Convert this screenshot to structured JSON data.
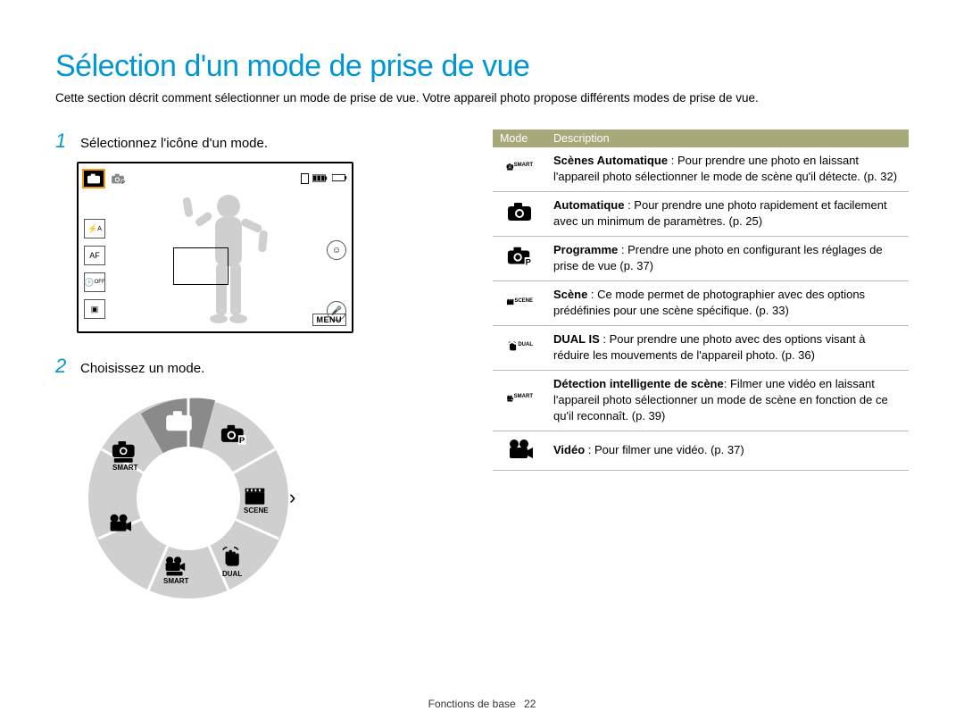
{
  "title": "Sélection d'un mode de prise de vue",
  "intro": "Cette section décrit comment sélectionner un mode de prise de vue. Votre appareil photo propose différents modes de prise de vue.",
  "steps": {
    "s1": {
      "num": "1",
      "text": "Sélectionnez l'icône d'un mode."
    },
    "s2": {
      "num": "2",
      "text": "Choisissez un mode."
    }
  },
  "lcd": {
    "flash_label": "A",
    "af_label": "AF",
    "off_label": "OFF",
    "menu_label": "MENU"
  },
  "dial": {
    "center_bg": "#ffffff",
    "ring_bg": "#cfcfcf",
    "segment_highlight": "#8a8a8a",
    "icon_color": "#000000",
    "labels": {
      "smart1": "SMART",
      "scene": "SCENE",
      "dual": "DUAL",
      "smart2": "SMART"
    }
  },
  "table": {
    "header": {
      "mode": "Mode",
      "desc": "Description"
    },
    "header_bg": "#a8a97a",
    "header_fg": "#ffffff",
    "border_color": "#bbbbbb",
    "rows": [
      {
        "bold": "Scènes Automatique",
        "rest": " : Pour prendre une photo en laissant l'appareil photo sélectionner le mode de scène qu'il détecte. (p. 32)",
        "icon": "smart-auto"
      },
      {
        "bold": "Automatique",
        "rest": " : Pour prendre une photo rapidement et facilement avec un minimum de paramètres. (p. 25)",
        "icon": "auto"
      },
      {
        "bold": "Programme",
        "rest": " : Prendre une photo en configurant les réglages de prise de vue (p. 37)",
        "icon": "program"
      },
      {
        "bold": "Scène",
        "rest": " : Ce mode permet de photographier avec des options prédéfinies pour une scène spécifique. (p. 33)",
        "icon": "scene"
      },
      {
        "bold": "DUAL IS",
        "rest": " : Pour prendre une photo avec des options visant à réduire les mouvements de l'appareil photo. (p. 36)",
        "icon": "dual"
      },
      {
        "bold": "Détection intelligente de scène",
        "rest": ": Filmer une vidéo en laissant l'appareil photo sélectionner un mode de scène en fonction de ce qu'il reconnaît. (p. 39)",
        "icon": "smart-movie"
      },
      {
        "bold": "Vidéo",
        "rest": " : Pour filmer une vidéo. (p. 37)",
        "icon": "movie"
      }
    ]
  },
  "footer": {
    "section": "Fonctions de base",
    "page": "22"
  }
}
